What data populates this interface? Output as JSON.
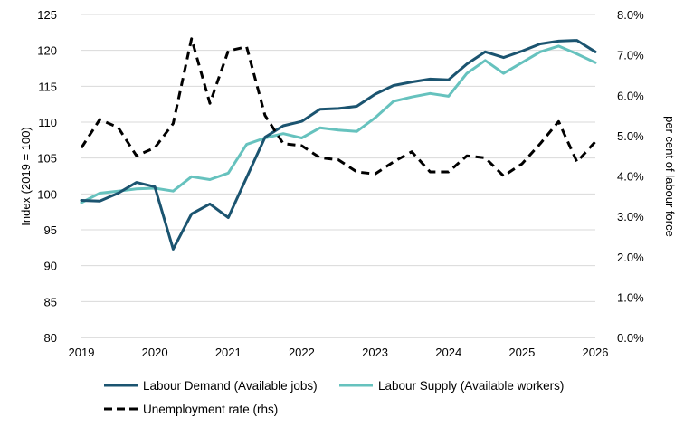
{
  "chart_data": {
    "type": "line",
    "x_ticks": [
      "2019",
      "2020",
      "2021",
      "2022",
      "2023",
      "2024",
      "2025",
      "2026"
    ],
    "x_range": [
      2019,
      2026
    ],
    "y_left": {
      "label": "Index (2019 = 100)",
      "range": [
        80,
        125
      ],
      "ticks": [
        "80",
        "85",
        "90",
        "95",
        "100",
        "105",
        "110",
        "115",
        "120",
        "125"
      ]
    },
    "y_right": {
      "label": "per cent of labour force",
      "range": [
        0,
        8
      ],
      "ticks": [
        "0.0%",
        "1.0%",
        "2.0%",
        "3.0%",
        "4.0%",
        "5.0%",
        "6.0%",
        "7.0%",
        "8.0%"
      ]
    },
    "grid": "horizontal",
    "legend_position": "bottom",
    "series": [
      {
        "name": "Labour Demand (Available jobs)",
        "axis": "left",
        "color": "#1b5470",
        "dash": "solid",
        "x": [
          2019.0,
          2019.25,
          2019.5,
          2019.75,
          2020.0,
          2020.25,
          2020.5,
          2020.75,
          2021.0,
          2021.25,
          2021.5,
          2021.75,
          2022.0,
          2022.25,
          2022.5,
          2022.75,
          2023.0,
          2023.25,
          2023.5,
          2023.75,
          2024.0,
          2024.25,
          2024.5,
          2024.75,
          2025.0,
          2025.25,
          2025.5,
          2025.75,
          2026.0
        ],
        "y": [
          99.1,
          99.0,
          100.1,
          101.6,
          101.0,
          92.3,
          97.2,
          98.6,
          96.7,
          102.3,
          107.9,
          109.5,
          110.1,
          111.8,
          111.9,
          112.2,
          113.9,
          115.1,
          115.6,
          116.0,
          115.9,
          118.1,
          119.8,
          119.0,
          119.9,
          120.9,
          121.3,
          121.4,
          119.8
        ]
      },
      {
        "name": "Labour Supply (Available workers)",
        "axis": "left",
        "color": "#66c2be",
        "dash": "solid",
        "x": [
          2019.0,
          2019.25,
          2019.5,
          2019.75,
          2020.0,
          2020.25,
          2020.5,
          2020.75,
          2021.0,
          2021.25,
          2021.5,
          2021.75,
          2022.0,
          2022.25,
          2022.5,
          2022.75,
          2023.0,
          2023.25,
          2023.5,
          2023.75,
          2024.0,
          2024.25,
          2024.5,
          2024.75,
          2025.0,
          2025.25,
          2025.5,
          2025.75,
          2026.0
        ],
        "y": [
          98.8,
          100.1,
          100.4,
          100.7,
          100.8,
          100.4,
          102.4,
          102.0,
          102.9,
          106.9,
          107.8,
          108.4,
          107.8,
          109.2,
          108.9,
          108.7,
          110.6,
          112.9,
          113.5,
          114.0,
          113.6,
          116.8,
          118.6,
          116.8,
          118.3,
          119.8,
          120.6,
          119.5,
          118.3
        ]
      },
      {
        "name": "Unemployment rate (rhs)",
        "axis": "right",
        "color": "#000000",
        "dash": "dashed",
        "x": [
          2019.0,
          2019.25,
          2019.5,
          2019.75,
          2020.0,
          2020.25,
          2020.5,
          2020.75,
          2021.0,
          2021.25,
          2021.5,
          2021.75,
          2022.0,
          2022.25,
          2022.5,
          2022.75,
          2023.0,
          2023.25,
          2023.5,
          2023.75,
          2024.0,
          2024.25,
          2024.5,
          2024.75,
          2025.0,
          2025.25,
          2025.5,
          2025.75,
          2026.0
        ],
        "y": [
          4.7,
          5.4,
          5.2,
          4.5,
          4.7,
          5.3,
          7.4,
          5.8,
          7.1,
          7.2,
          5.5,
          4.8,
          4.75,
          4.45,
          4.4,
          4.1,
          4.05,
          4.35,
          4.6,
          4.1,
          4.1,
          4.5,
          4.45,
          4.0,
          4.3,
          4.8,
          5.35,
          4.35,
          4.85
        ]
      }
    ]
  }
}
